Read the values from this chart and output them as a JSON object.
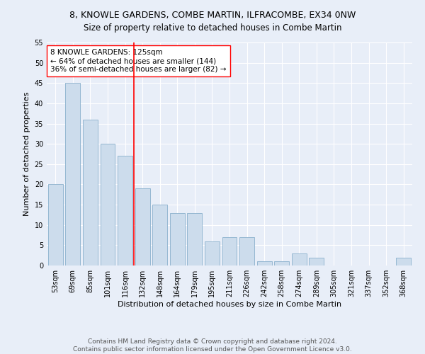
{
  "title": "8, KNOWLE GARDENS, COMBE MARTIN, ILFRACOMBE, EX34 0NW",
  "subtitle": "Size of property relative to detached houses in Combe Martin",
  "xlabel": "Distribution of detached houses by size in Combe Martin",
  "ylabel": "Number of detached properties",
  "bar_values": [
    20,
    45,
    36,
    30,
    27,
    19,
    15,
    13,
    13,
    6,
    7,
    7,
    1,
    1,
    3,
    2,
    0,
    0,
    0,
    0,
    2
  ],
  "categories": [
    "53sqm",
    "69sqm",
    "85sqm",
    "101sqm",
    "116sqm",
    "132sqm",
    "148sqm",
    "164sqm",
    "179sqm",
    "195sqm",
    "211sqm",
    "226sqm",
    "242sqm",
    "258sqm",
    "274sqm",
    "289sqm",
    "305sqm",
    "321sqm",
    "337sqm",
    "352sqm",
    "368sqm"
  ],
  "bar_color": "#ccdcec",
  "bar_edge_color": "#8ab0cc",
  "vline_x": 4.5,
  "vline_color": "red",
  "annotation_text": "8 KNOWLE GARDENS: 125sqm\n← 64% of detached houses are smaller (144)\n36% of semi-detached houses are larger (82) →",
  "annotation_box_color": "white",
  "annotation_box_edge": "red",
  "ylim": [
    0,
    55
  ],
  "yticks": [
    0,
    5,
    10,
    15,
    20,
    25,
    30,
    35,
    40,
    45,
    50,
    55
  ],
  "footer": "Contains HM Land Registry data © Crown copyright and database right 2024.\nContains public sector information licensed under the Open Government Licence v3.0.",
  "bg_color": "#e8eef8",
  "plot_bg_color": "#e8eef8",
  "title_fontsize": 9,
  "xlabel_fontsize": 8,
  "ylabel_fontsize": 8,
  "tick_fontsize": 7,
  "annotation_fontsize": 7.5,
  "footer_fontsize": 6.5
}
